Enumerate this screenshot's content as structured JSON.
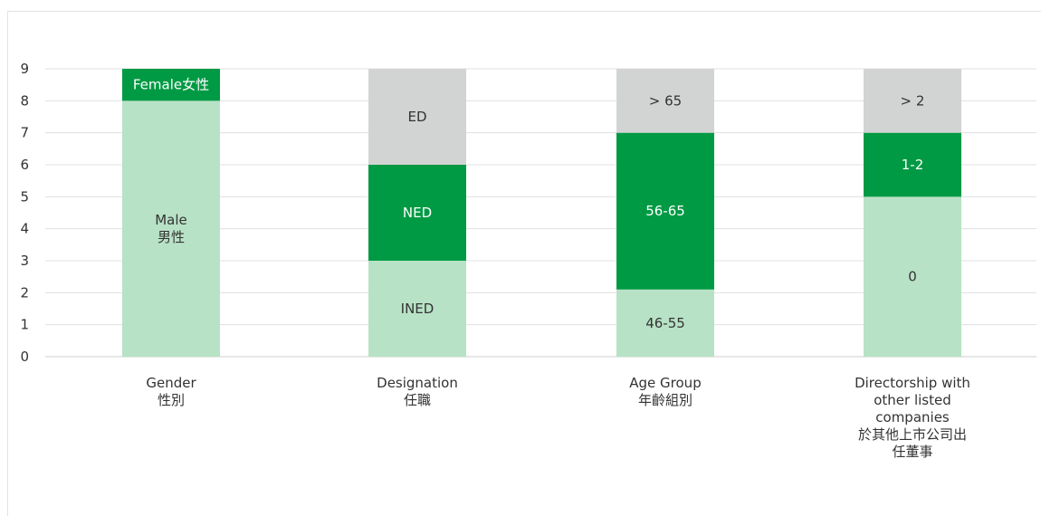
{
  "chart_data": {
    "type": "bar",
    "stacked": true,
    "ylim": [
      0,
      9
    ],
    "yticks": [
      0,
      1,
      2,
      3,
      4,
      5,
      6,
      7,
      8,
      9
    ],
    "grid": true,
    "colors": {
      "light_green": "#b8e2c5",
      "dark_green": "#009a44",
      "grey": "#d2d3d3",
      "gridline": "#e0e0e0",
      "axis": "#cfcfcf"
    },
    "categories": [
      {
        "label_lines": [
          "Gender",
          "性別"
        ],
        "segments": [
          {
            "label_lines": [
              "Male",
              "男性"
            ],
            "value": 8,
            "color": "light_green",
            "text_color": "#333333"
          },
          {
            "label_lines": [
              "Female女性"
            ],
            "value": 1,
            "color": "dark_green",
            "text_color": "#ffffff"
          }
        ]
      },
      {
        "label_lines": [
          "Designation",
          "任職"
        ],
        "segments": [
          {
            "label_lines": [
              "INED"
            ],
            "value": 3,
            "color": "light_green",
            "text_color": "#333333"
          },
          {
            "label_lines": [
              "NED"
            ],
            "value": 3,
            "color": "dark_green",
            "text_color": "#ffffff"
          },
          {
            "label_lines": [
              "ED"
            ],
            "value": 3,
            "color": "grey",
            "text_color": "#333333"
          }
        ]
      },
      {
        "label_lines": [
          "Age Group",
          "年齡組別"
        ],
        "segments": [
          {
            "label_lines": [
              "46-55"
            ],
            "value": 2.1,
            "color": "light_green",
            "text_color": "#333333"
          },
          {
            "label_lines": [
              "56-65"
            ],
            "value": 4.9,
            "color": "dark_green",
            "text_color": "#ffffff"
          },
          {
            "label_lines": [
              "> 65"
            ],
            "value": 2,
            "color": "grey",
            "text_color": "#333333"
          }
        ]
      },
      {
        "label_lines": [
          "Directorship with",
          "other listed",
          "companies",
          "於其他上市公司出",
          "任董事"
        ],
        "segments": [
          {
            "label_lines": [
              "0"
            ],
            "value": 5,
            "color": "light_green",
            "text_color": "#333333"
          },
          {
            "label_lines": [
              "1-2"
            ],
            "value": 2,
            "color": "dark_green",
            "text_color": "#ffffff"
          },
          {
            "label_lines": [
              "> 2"
            ],
            "value": 2,
            "color": "grey",
            "text_color": "#333333"
          }
        ]
      }
    ]
  }
}
